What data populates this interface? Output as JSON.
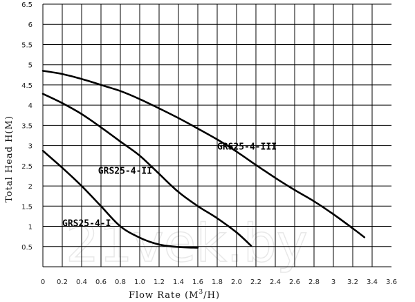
{
  "chart_data": {
    "type": "line",
    "xlabel_main": "Flow Rate (M",
    "xlabel_sup": "3",
    "xlabel_tail": "/H)",
    "ylabel": "Total Head H(M)",
    "xlim": [
      0,
      3.6
    ],
    "ylim": [
      0,
      6.5
    ],
    "x_ticks": [
      "0",
      "0.2",
      "0.4",
      "0.6",
      "0.8",
      "1.0",
      "1.2",
      "1.4",
      "1.6",
      "1.8",
      "2.0",
      "2.2",
      "2.4",
      "2.6",
      "2.8",
      "3",
      "3.2",
      "3.4",
      "3.6"
    ],
    "y_ticks": [
      "0.5",
      "1",
      "1.5",
      "2",
      "2.5",
      "3",
      "3.5",
      "4",
      "4.5",
      "5",
      "5.5",
      "6",
      "6.5"
    ],
    "grid": true,
    "series": [
      {
        "name": "GRS25-4-I",
        "label_at": [
          0.2,
          1.0
        ],
        "points": [
          [
            0,
            2.87
          ],
          [
            0.2,
            2.45
          ],
          [
            0.4,
            2.0
          ],
          [
            0.6,
            1.5
          ],
          [
            0.8,
            1.0
          ],
          [
            1.0,
            0.72
          ],
          [
            1.2,
            0.55
          ],
          [
            1.4,
            0.49
          ],
          [
            1.6,
            0.47
          ]
        ]
      },
      {
        "name": "GRS25-4-II",
        "label_at": [
          0.57,
          2.3
        ],
        "points": [
          [
            0,
            4.28
          ],
          [
            0.2,
            4.05
          ],
          [
            0.4,
            3.78
          ],
          [
            0.6,
            3.45
          ],
          [
            0.8,
            3.1
          ],
          [
            1.0,
            2.75
          ],
          [
            1.2,
            2.3
          ],
          [
            1.4,
            1.85
          ],
          [
            1.6,
            1.5
          ],
          [
            1.8,
            1.2
          ],
          [
            2.0,
            0.85
          ],
          [
            2.15,
            0.52
          ]
        ]
      },
      {
        "name": "GRS25-4-III",
        "label_at": [
          1.8,
          2.9
        ],
        "points": [
          [
            0,
            4.85
          ],
          [
            0.2,
            4.77
          ],
          [
            0.4,
            4.65
          ],
          [
            0.6,
            4.5
          ],
          [
            0.8,
            4.35
          ],
          [
            1.0,
            4.15
          ],
          [
            1.2,
            3.92
          ],
          [
            1.4,
            3.68
          ],
          [
            1.6,
            3.42
          ],
          [
            1.8,
            3.15
          ],
          [
            2.0,
            2.85
          ],
          [
            2.2,
            2.52
          ],
          [
            2.4,
            2.2
          ],
          [
            2.6,
            1.9
          ],
          [
            2.8,
            1.62
          ],
          [
            3.0,
            1.3
          ],
          [
            3.2,
            0.95
          ],
          [
            3.32,
            0.73
          ]
        ]
      }
    ]
  },
  "watermark": "21vek.by"
}
